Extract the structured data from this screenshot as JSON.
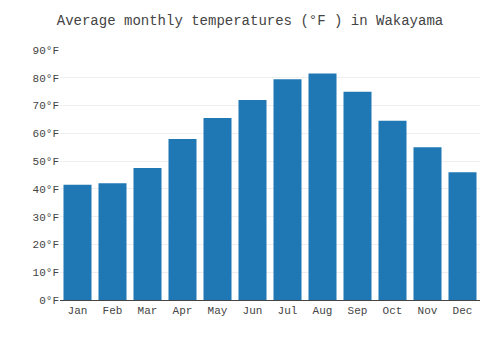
{
  "chart_data": {
    "type": "bar",
    "title": "Average monthly temperatures (°F ) in Wakayama",
    "categories": [
      "Jan",
      "Feb",
      "Mar",
      "Apr",
      "May",
      "Jun",
      "Jul",
      "Aug",
      "Sep",
      "Oct",
      "Nov",
      "Dec"
    ],
    "values": [
      41.5,
      42.0,
      47.5,
      58.0,
      65.5,
      72.0,
      79.5,
      81.5,
      75.0,
      64.5,
      55.0,
      46.0
    ],
    "ylim": [
      0,
      90
    ],
    "yticks": [
      {
        "value": 0,
        "label": "0°F"
      },
      {
        "value": 10,
        "label": "10°F"
      },
      {
        "value": 20,
        "label": "20°F"
      },
      {
        "value": 30,
        "label": "30°F"
      },
      {
        "value": 40,
        "label": "40°F"
      },
      {
        "value": 50,
        "label": "50°F"
      },
      {
        "value": 60,
        "label": "60°F"
      },
      {
        "value": 70,
        "label": "70°F"
      },
      {
        "value": 80,
        "label": "80°F"
      },
      {
        "value": 90,
        "label": "90°F"
      }
    ],
    "grid": true
  }
}
